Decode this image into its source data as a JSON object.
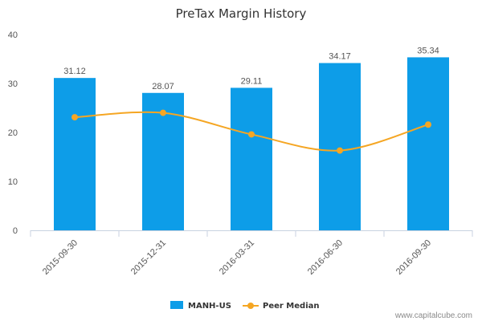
{
  "chart_data": {
    "type": "bar",
    "title": "PreTax Margin History",
    "categories": [
      "2015-09-30",
      "2015-12-31",
      "2016-03-31",
      "2016-06-30",
      "2016-09-30"
    ],
    "series": [
      {
        "name": "MANH-US",
        "kind": "bar",
        "color": "#0d9de8",
        "values": [
          31.12,
          28.07,
          29.11,
          34.17,
          35.34
        ],
        "labels": [
          "31.12",
          "28.07",
          "29.11",
          "34.17",
          "35.34"
        ]
      },
      {
        "name": "Peer Median",
        "kind": "line",
        "color": "#f5a623",
        "values": [
          23.1,
          24.0,
          19.6,
          16.3,
          21.6
        ]
      }
    ],
    "ylim": [
      0,
      40
    ],
    "yticks": [
      "0",
      "10",
      "20",
      "30",
      "40"
    ],
    "grid": false,
    "legend_position": "bottom-center"
  },
  "credit": "www.capitalcube.com"
}
